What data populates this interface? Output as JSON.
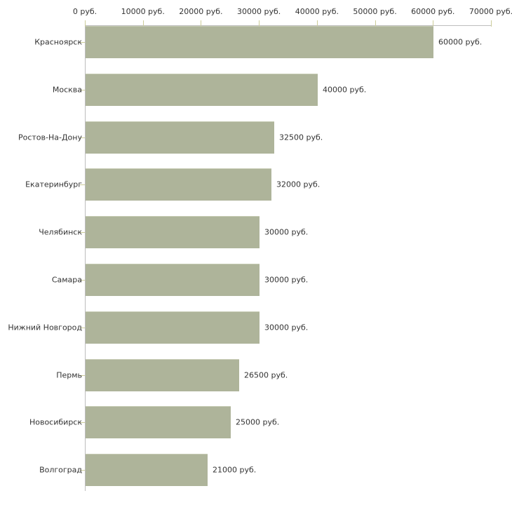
{
  "chart_data": {
    "type": "bar",
    "orientation": "horizontal",
    "title": "",
    "xlabel": "",
    "ylabel": "",
    "xlim": [
      0,
      70000
    ],
    "grid": false,
    "legend": null,
    "x_tick_labels": [
      "0 руб.",
      "10000 руб.",
      "20000 руб.",
      "30000 руб.",
      "40000 руб.",
      "50000 руб.",
      "60000 руб.",
      "70000 руб."
    ],
    "x_tick_values": [
      0,
      10000,
      20000,
      30000,
      40000,
      50000,
      60000,
      70000
    ],
    "categories": [
      "Красноярск",
      "Москва",
      "Ростов-На-Дону",
      "Екатеринбург",
      "Челябинск",
      "Самара",
      "Нижний Новгород",
      "Пермь",
      "Новосибирск",
      "Волгоград"
    ],
    "values": [
      60000,
      40000,
      32500,
      32000,
      30000,
      30000,
      30000,
      26500,
      25000,
      21000
    ],
    "value_labels": [
      "60000 руб.",
      "40000 руб.",
      "32500 руб.",
      "32000 руб.",
      "30000 руб.",
      "30000 руб.",
      "30000 руб.",
      "26500 руб.",
      "25000 руб.",
      "21000 руб."
    ],
    "colors": {
      "bar_fill": "#aeb49a",
      "bar_top_edge": "#c6cbb3",
      "axis_line": "#bdbdbd",
      "tick": "#cccc99",
      "text": "#333333",
      "background": "#ffffff"
    }
  }
}
